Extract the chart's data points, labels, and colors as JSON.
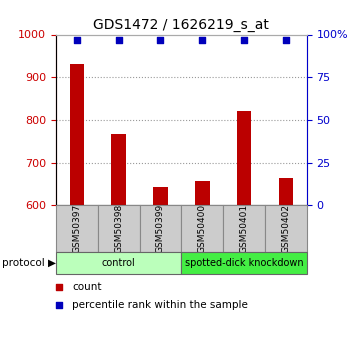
{
  "title": "GDS1472 / 1626219_s_at",
  "samples": [
    "GSM50397",
    "GSM50398",
    "GSM50399",
    "GSM50400",
    "GSM50401",
    "GSM50402"
  ],
  "counts": [
    930,
    768,
    643,
    657,
    820,
    665
  ],
  "percentile_ranks": [
    97,
    97,
    97,
    97,
    97,
    97
  ],
  "ylim_left": [
    600,
    1000
  ],
  "ylim_right": [
    0,
    100
  ],
  "yticks_left": [
    600,
    700,
    800,
    900,
    1000
  ],
  "yticks_right": [
    0,
    25,
    50,
    75,
    100
  ],
  "ytick_labels_right": [
    "0",
    "25",
    "50",
    "75",
    "100%"
  ],
  "bar_color": "#bb0000",
  "scatter_color": "#0000bb",
  "left_axis_color": "#cc0000",
  "right_axis_color": "#0000cc",
  "bar_width": 0.35,
  "protocol_groups": [
    {
      "label": "control",
      "start": 0,
      "end": 2,
      "color": "#bbffbb"
    },
    {
      "label": "spotted-dick knockdown",
      "start": 3,
      "end": 5,
      "color": "#44ee44"
    }
  ],
  "bg_color": "#ffffff",
  "plot_bg": "#ffffff",
  "grid_color": "#999999"
}
